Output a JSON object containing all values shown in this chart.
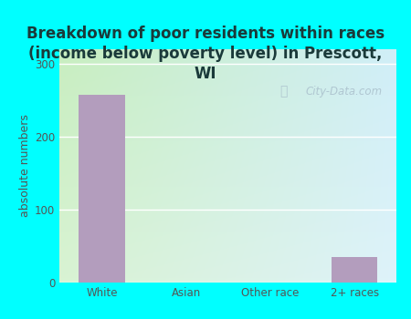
{
  "title": "Breakdown of poor residents within races\n(income below poverty level) in Prescott,\nWI",
  "categories": [
    "White",
    "Asian",
    "Other race",
    "2+ races"
  ],
  "values": [
    258,
    0,
    0,
    35
  ],
  "bar_color": "#b39dbd",
  "ylabel": "absolute numbers",
  "ylim": [
    0,
    320
  ],
  "yticks": [
    0,
    100,
    200,
    300
  ],
  "bg_outer": "#00ffff",
  "bg_plot_grad_left": "#c8eec0",
  "bg_plot_grad_right": "#d0eef8",
  "grid_color": "#ffffff",
  "title_fontsize": 12,
  "axis_label_fontsize": 9,
  "tick_fontsize": 8.5,
  "watermark_text": "City-Data.com",
  "title_color": "#1a3a3a"
}
